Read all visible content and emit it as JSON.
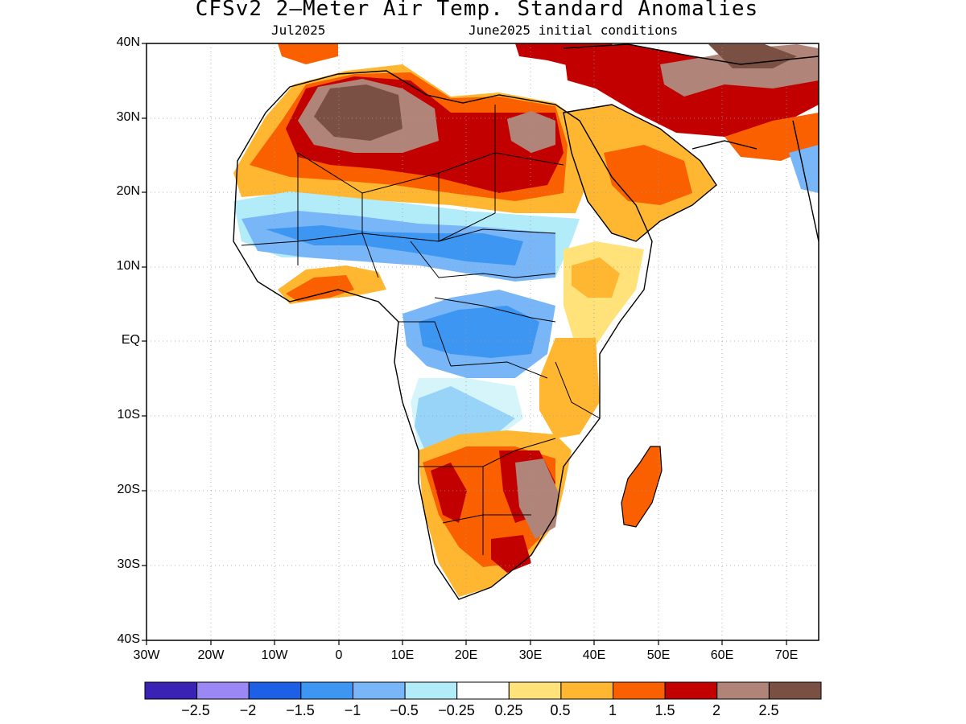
{
  "title": "CFSv2 2—Meter Air Temp. Standard Anomalies",
  "subtitle_left": "Jul2025",
  "subtitle_right": "June2025 initial conditions",
  "lat_labels": [
    "40N",
    "30N",
    "20N",
    "10N",
    "EQ",
    "10S",
    "20S",
    "30S",
    "40S"
  ],
  "lon_labels": [
    "30W",
    "20W",
    "10W",
    "0",
    "10E",
    "20E",
    "30E",
    "40E",
    "50E",
    "60E",
    "70E"
  ],
  "colorbar": {
    "colors": [
      "#3a22b4",
      "#9b88f5",
      "#1d60e6",
      "#3d96f2",
      "#78b6f8",
      "#b2ecf8",
      "#ffffff",
      "#ffe27a",
      "#ffb732",
      "#fa6000",
      "#c20000",
      "#b08478",
      "#7a5044"
    ],
    "labels": [
      "−2.5",
      "−2",
      "−1.5",
      "−1",
      "−0.5",
      "−0.25",
      "0.25",
      "0.5",
      "1",
      "1.5",
      "2",
      "2.5"
    ]
  }
}
